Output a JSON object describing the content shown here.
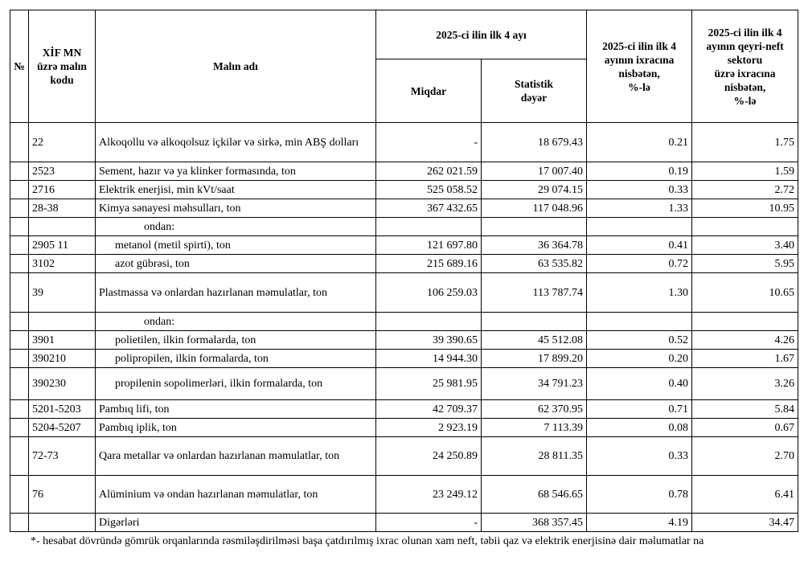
{
  "header": {
    "no": "№",
    "code": "XİF MN\nüzrə malın\nkodu",
    "name": "Malın adı",
    "period": "2025-ci ilin ilk 4 ayı",
    "quantity": "Miqdar",
    "value": "Statistik\ndəyər",
    "share": "2025-ci ilin ilk 4\nayının ixracına\nnisbətən,\n%-lə",
    "share_nonoil": "2025-ci ilin ilk 4\nayının qeyri-neft\nsektoru\nüzrə ixracına\nnisbətən,\n%-lə"
  },
  "rows": [
    {
      "code": "22",
      "name": "Alkoqollu və alkoqolsuz içkilər və sirkə, min ABŞ dolları",
      "quantity": "-",
      "value": "18 679.43",
      "share": "0.21",
      "share_nonoil": "1.75"
    },
    {
      "code": "2523",
      "name": "Sement, hazır və ya klinker formasında, ton",
      "quantity": "262 021.59",
      "value": "17 007.40",
      "share": "0.19",
      "share_nonoil": "1.59"
    },
    {
      "code": "2716",
      "name": "Elektrik enerjisi, min kVt/saat",
      "quantity": "525 058.52",
      "value": "29 074.15",
      "share": "0.33",
      "share_nonoil": "2.72"
    },
    {
      "code": "28-38",
      "name": "Kimya sənayesi məhsulları, ton",
      "quantity": "367 432.65",
      "value": "117 048.96",
      "share": "1.33",
      "share_nonoil": "10.95"
    },
    {
      "name": "ondan:"
    },
    {
      "code": "2905 11",
      "name": "metanol (metil spirti), ton",
      "quantity": "121 697.80",
      "value": "36 364.78",
      "share": "0.41",
      "share_nonoil": "3.40"
    },
    {
      "code": "3102",
      "name": "azot gübrəsi, ton",
      "quantity": "215 689.16",
      "value": "63 535.82",
      "share": "0.72",
      "share_nonoil": "5.95"
    },
    {
      "code": "39",
      "name": "Plastmassa və onlardan hazırlanan məmulatlar, ton",
      "quantity": "106 259.03",
      "value": "113 787.74",
      "share": "1.30",
      "share_nonoil": "10.65"
    },
    {
      "name": "ondan:"
    },
    {
      "code": "3901",
      "name": "polietilen, ilkin formalarda, ton",
      "quantity": "39 390.65",
      "value": "45 512.08",
      "share": "0.52",
      "share_nonoil": "4.26"
    },
    {
      "code": "390210",
      "name": "polipropilen, ilkin formalarda, ton",
      "quantity": "14 944.30",
      "value": "17 899.20",
      "share": "0.20",
      "share_nonoil": "1.67"
    },
    {
      "code": "390230",
      "name": "propilenin sopolimerləri, ilkin formalarda, ton",
      "quantity": "25 981.95",
      "value": "34 791.23",
      "share": "0.40",
      "share_nonoil": "3.26"
    },
    {
      "code": "5201-5203",
      "name": "Pambıq lifi, ton",
      "quantity": "42 709.37",
      "value": "62 370.95",
      "share": "0.71",
      "share_nonoil": "5.84"
    },
    {
      "code": "5204-5207",
      "name": "Pambıq iplik, ton",
      "quantity": "2 923.19",
      "value": "7 113.39",
      "share": "0.08",
      "share_nonoil": "0.67"
    },
    {
      "code": "72-73",
      "name": "Qara metallar və onlardan hazırlanan məmulatlar, ton",
      "quantity": "24 250.89",
      "value": "28 811.35",
      "share": "0.33",
      "share_nonoil": "2.70"
    },
    {
      "code": "76",
      "name": "Alüminium və ondan hazırlanan məmulatlar, ton",
      "quantity": "23 249.12",
      "value": "68 546.65",
      "share": "0.78",
      "share_nonoil": "6.41"
    },
    {
      "name": "Digərləri",
      "quantity": "-",
      "value": "368 357.45",
      "share": "4.19",
      "share_nonoil": "34.47"
    }
  ],
  "footnote": "*- hesabat dövründə gömrük orqanlarında rəsmiləşdirilməsi başa çatdırılmış ixrac olunan xam neft, təbii qaz və elektrik enerjisinə dair məlumatlar na"
}
